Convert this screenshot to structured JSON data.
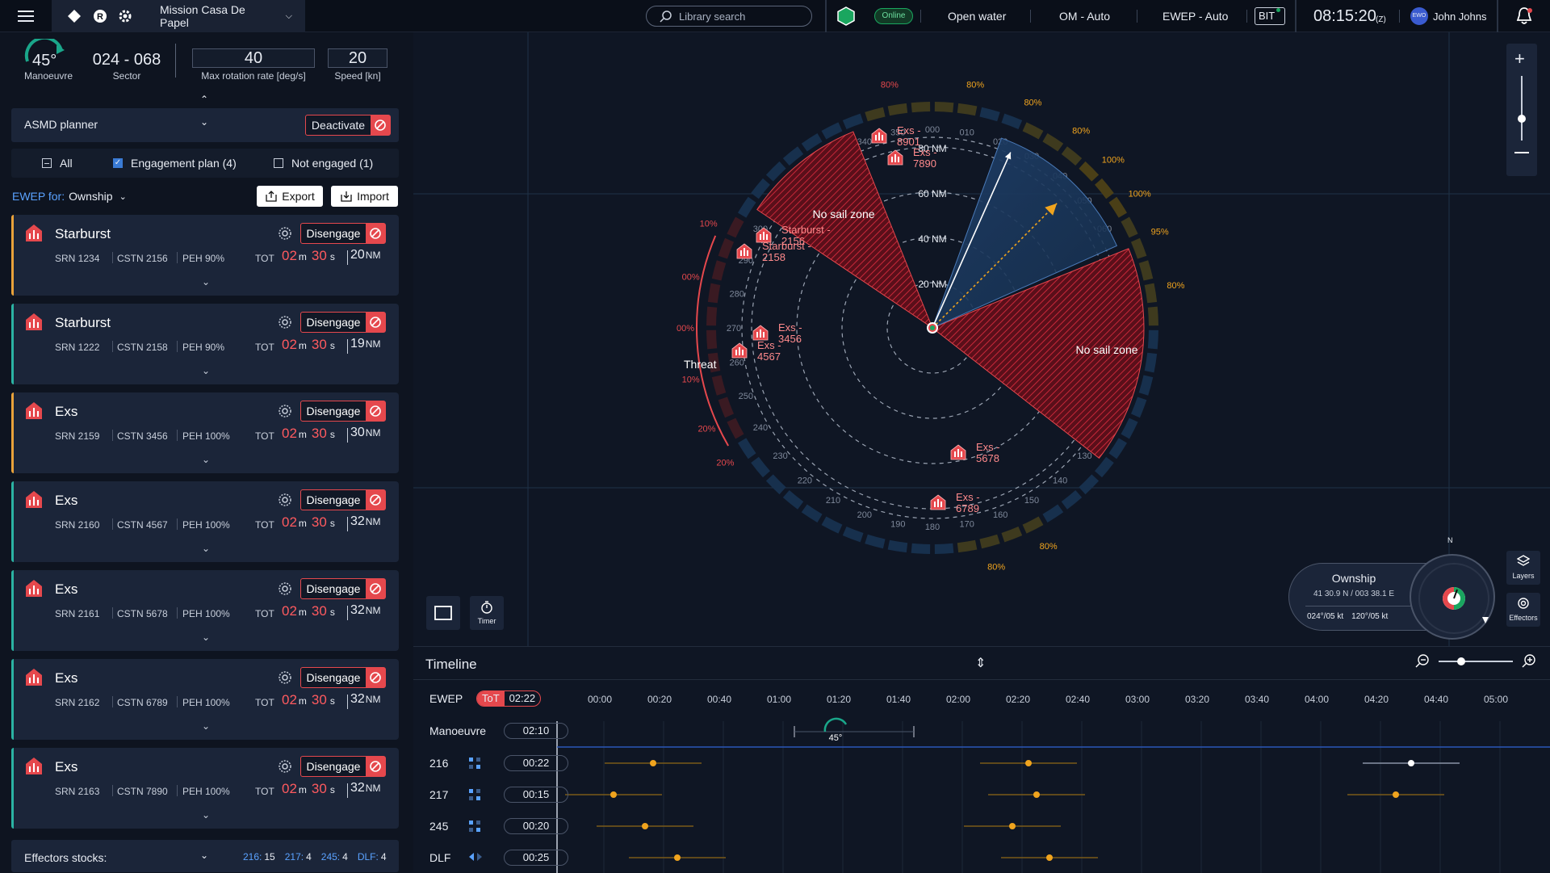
{
  "topbar": {
    "mission": "Mission Casa De Papel",
    "search_placeholder": "Library search",
    "status": "Online",
    "water": "Open water",
    "om": "OM - Auto",
    "ewep": "EWEP - Auto",
    "bit": "BIT",
    "time": "08:15:20",
    "tz": "(Z)",
    "user_initials": "EWO",
    "user_name": "John Johns"
  },
  "manoeuvre": {
    "angle": "45°",
    "angle_label": "Manoeuvre",
    "sector": "024 - 068",
    "sector_label": "Sector",
    "rotation_value": "40",
    "rotation_label": "Max rotation rate [deg/s]",
    "speed_value": "20",
    "speed_label": "Speed [kn]"
  },
  "asmd": {
    "label": "ASMD planner",
    "deactivate": "Deactivate"
  },
  "filters": {
    "all": "All",
    "engagement": "Engagement plan (4)",
    "not_engaged": "Not engaged (1)"
  },
  "ewep_for": {
    "prefix": "EWEP for:",
    "value": "Ownship",
    "export": "Export",
    "import": "Import"
  },
  "engagement_common": {
    "disengage": "Disengage",
    "tot_label": "TOT",
    "m": "m",
    "s": "s",
    "nm": "NM"
  },
  "threats": [
    {
      "name": "Starburst",
      "srn": "SRN 1234",
      "cstn": "CSTN 2156",
      "peh": "PEH 90%",
      "min": "02",
      "sec": "30",
      "range": "20",
      "accent": "#e9a23b"
    },
    {
      "name": "Starburst",
      "srn": "SRN 1222",
      "cstn": "CSTN 2158",
      "peh": "PEH 90%",
      "min": "02",
      "sec": "30",
      "range": "19",
      "accent": "#2bb3a3"
    },
    {
      "name": "Exs",
      "srn": "SRN 2159",
      "cstn": "CSTN 3456",
      "peh": "PEH 100%",
      "min": "02",
      "sec": "30",
      "range": "30",
      "accent": "#e9a23b"
    },
    {
      "name": "Exs",
      "srn": "SRN 2160",
      "cstn": "CSTN 4567",
      "peh": "PEH 100%",
      "min": "02",
      "sec": "30",
      "range": "32",
      "accent": "#2bb3a3"
    },
    {
      "name": "Exs",
      "srn": "SRN 2161",
      "cstn": "CSTN 5678",
      "peh": "PEH 100%",
      "min": "02",
      "sec": "30",
      "range": "32",
      "accent": "#2bb3a3"
    },
    {
      "name": "Exs",
      "srn": "SRN 2162",
      "cstn": "CSTN 6789",
      "peh": "PEH 100%",
      "min": "02",
      "sec": "30",
      "range": "32",
      "accent": "#2bb3a3"
    },
    {
      "name": "Exs",
      "srn": "SRN 2163",
      "cstn": "CSTN 7890",
      "peh": "PEH 100%",
      "min": "02",
      "sec": "30",
      "range": "32",
      "accent": "#2bb3a3"
    }
  ],
  "effectors": {
    "label": "Effectors stocks:",
    "items": [
      {
        "k": "216:",
        "v": "15"
      },
      {
        "k": "217:",
        "v": "4"
      },
      {
        "k": "245:",
        "v": "4"
      },
      {
        "k": "DLF:",
        "v": "4"
      }
    ]
  },
  "map": {
    "range_rings": [
      "20 NM",
      "40 NM",
      "60 NM",
      "80 NM"
    ],
    "no_sail": "No sail zone",
    "threat_label": "Threat",
    "outer_pcts": [
      {
        "t": "80%",
        "a": 350
      },
      {
        "t": "80%",
        "a": 10
      },
      {
        "t": "80%",
        "a": 24
      },
      {
        "t": "80%",
        "a": 37
      },
      {
        "t": "100%",
        "a": 47
      },
      {
        "t": "100%",
        "a": 57
      },
      {
        "t": "95%",
        "a": 67
      },
      {
        "t": "80%",
        "a": 80
      },
      {
        "t": "80%",
        "a": 152
      },
      {
        "t": "80%",
        "a": 165
      },
      {
        "t": "10%",
        "a": 295
      },
      {
        "t": "00%",
        "a": 282
      },
      {
        "t": "00%",
        "a": 270
      },
      {
        "t": "10%",
        "a": 258
      },
      {
        "t": "20%",
        "a": 246
      },
      {
        "t": "20%",
        "a": 237
      }
    ],
    "targets": [
      {
        "n1": "Exs -",
        "n2": "8901",
        "x": 1089,
        "y": 168
      },
      {
        "n1": "Exs -",
        "n2": "7890",
        "x": 1109,
        "y": 195
      },
      {
        "n1": "Starburst -",
        "n2": "2156",
        "x": 946,
        "y": 291
      },
      {
        "n1": "Starburst -",
        "n2": "2158",
        "x": 922,
        "y": 311
      },
      {
        "n1": "Exs -",
        "n2": "3456",
        "x": 942,
        "y": 412
      },
      {
        "n1": "Exs -",
        "n2": "4567",
        "x": 916,
        "y": 434
      },
      {
        "n1": "Exs -",
        "n2": "5678",
        "x": 1187,
        "y": 560
      },
      {
        "n1": "Exs -",
        "n2": "6789",
        "x": 1162,
        "y": 622
      }
    ],
    "tools": {
      "timer": "Timer",
      "layers": "Layers",
      "effectors": "Effectors"
    },
    "ownship": {
      "title": "Ownship",
      "position": "41 30.9 N / 003 38.1 E",
      "course1": "024°/05 kt",
      "course2": "120°/05 kt",
      "north": "N"
    }
  },
  "timeline": {
    "title": "Timeline",
    "ewep": "EWEP",
    "tot_badge": "ToT",
    "tot_value": "02:22",
    "ticks": [
      "00:00",
      "00:20",
      "00:40",
      "01:00",
      "01:20",
      "01:40",
      "02:00",
      "02:20",
      "02:40",
      "03:00",
      "03:20",
      "03:40",
      "04:00",
      "04:20",
      "04:40",
      "05:00"
    ],
    "manoeuvre": {
      "label": "Manoeuvre",
      "time": "02:10",
      "angle": "45°"
    },
    "rows": [
      {
        "label": "216",
        "time": "00:22"
      },
      {
        "label": "217",
        "time": "00:15"
      },
      {
        "label": "245",
        "time": "00:20"
      },
      {
        "label": "DLF",
        "time": "00:25"
      }
    ]
  }
}
